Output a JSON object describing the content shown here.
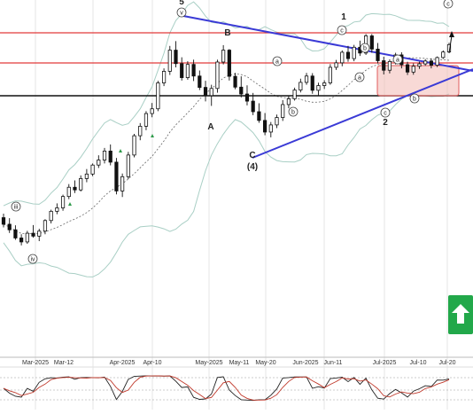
{
  "chart_data": {
    "type": "candlestick",
    "title": "",
    "xlabel": "",
    "ylabel": "",
    "x_tick_labels": [
      "Mar-2025",
      "Mar-12",
      "Apr-2025",
      "Apr-10",
      "May-2025",
      "May-11",
      "May-20",
      "Jun-2025",
      "Jun-11",
      "Jul-2025",
      "Jul-10",
      "Jul-20"
    ],
    "grid": "vertical",
    "price_range_normalized": [
      0,
      100
    ],
    "ohlc": [
      [
        25.0,
        26.5,
        21.3,
        22.5
      ],
      [
        22.5,
        24.8,
        19.2,
        20.4
      ],
      [
        20.4,
        22.1,
        16.6,
        17.3
      ],
      [
        17.3,
        18.7,
        14.5,
        15.8
      ],
      [
        15.8,
        20.0,
        15.1,
        19.1
      ],
      [
        19.1,
        22.2,
        17.4,
        18.0
      ],
      [
        18.0,
        20.8,
        16.1,
        19.9
      ],
      [
        19.9,
        24.4,
        18.7,
        23.9
      ],
      [
        23.9,
        28.0,
        22.8,
        27.4
      ],
      [
        27.4,
        30.4,
        26.3,
        28.7
      ],
      [
        28.7,
        33.7,
        27.6,
        33.0
      ],
      [
        33.0,
        37.7,
        32.0,
        36.5
      ],
      [
        36.5,
        39.1,
        34.3,
        35.5
      ],
      [
        35.5,
        41.0,
        34.9,
        39.8
      ],
      [
        39.8,
        43.4,
        38.4,
        41.5
      ],
      [
        41.5,
        45.5,
        40.7,
        44.9
      ],
      [
        44.9,
        48.6,
        43.8,
        46.8
      ],
      [
        46.8,
        51.4,
        45.5,
        50.2
      ],
      [
        50.2,
        52.7,
        44.8,
        46.0
      ],
      [
        46.0,
        47.6,
        33.8,
        35.1
      ],
      [
        35.1,
        41.7,
        32.8,
        40.5
      ],
      [
        40.5,
        49.9,
        39.6,
        48.7
      ],
      [
        48.7,
        56.7,
        47.8,
        56.0
      ],
      [
        56.0,
        60.8,
        54.3,
        59.6
      ],
      [
        59.6,
        65.3,
        58.1,
        64.4
      ],
      [
        64.4,
        68.4,
        63.0,
        66.2
      ],
      [
        66.2,
        76.8,
        65.3,
        76.0
      ],
      [
        76.0,
        81.5,
        74.8,
        80.4
      ],
      [
        80.4,
        90.0,
        79.0,
        88.4
      ],
      [
        88.4,
        91.8,
        81.9,
        83.3
      ],
      [
        83.3,
        85.7,
        76.9,
        78.0
      ],
      [
        78.0,
        84.2,
        77.2,
        83.0
      ],
      [
        83.0,
        84.8,
        76.7,
        78.6
      ],
      [
        78.6,
        80.7,
        73.3,
        74.3
      ],
      [
        74.3,
        76.8,
        69.0,
        71.2
      ],
      [
        71.2,
        75.3,
        67.3,
        73.9
      ],
      [
        73.9,
        84.8,
        72.3,
        83.9
      ],
      [
        83.9,
        90.3,
        83.0,
        88.4
      ],
      [
        88.4,
        88.8,
        76.9,
        78.5
      ],
      [
        78.5,
        79.8,
        73.6,
        74.4
      ],
      [
        74.4,
        78.5,
        70.5,
        71.8
      ],
      [
        71.8,
        75.1,
        67.5,
        69.1
      ],
      [
        69.1,
        72.2,
        63.8,
        65.1
      ],
      [
        65.1,
        68.3,
        60.9,
        61.8
      ],
      [
        61.8,
        64.6,
        56.2,
        57.4
      ],
      [
        57.4,
        61.2,
        55.4,
        60.1
      ],
      [
        60.1,
        64.0,
        58.9,
        62.9
      ],
      [
        62.9,
        69.5,
        61.6,
        67.8
      ],
      [
        67.8,
        71.3,
        66.4,
        70.0
      ],
      [
        70.0,
        74.2,
        69.3,
        73.3
      ],
      [
        73.3,
        77.6,
        72.4,
        76.2
      ],
      [
        76.2,
        79.8,
        75.3,
        78.6
      ],
      [
        78.6,
        79.7,
        71.9,
        73.2
      ],
      [
        73.2,
        76.1,
        71.1,
        75.0
      ],
      [
        75.0,
        77.0,
        73.7,
        76.0
      ],
      [
        76.0,
        83.1,
        75.3,
        81.9
      ],
      [
        81.9,
        84.7,
        80.9,
        83.6
      ],
      [
        83.6,
        88.3,
        82.3,
        87.6
      ],
      [
        87.6,
        90.0,
        84.0,
        85.2
      ],
      [
        85.2,
        90.4,
        84.2,
        89.5
      ],
      [
        89.5,
        92.0,
        86.2,
        87.3
      ],
      [
        87.3,
        94.5,
        86.6,
        93.8
      ],
      [
        93.8,
        94.5,
        87.4,
        88.8
      ],
      [
        88.8,
        91.1,
        83.4,
        84.4
      ],
      [
        84.4,
        85.9,
        79.2,
        80.8
      ],
      [
        80.8,
        84.9,
        79.6,
        84.1
      ],
      [
        84.1,
        87.4,
        83.0,
        86.6
      ],
      [
        86.6,
        87.6,
        81.5,
        82.9
      ],
      [
        82.9,
        84.0,
        79.0,
        80.1
      ],
      [
        80.1,
        83.4,
        79.1,
        82.3
      ],
      [
        82.3,
        84.0,
        81.3,
        83.2
      ],
      [
        83.2,
        85.0,
        82.5,
        84.3
      ],
      [
        84.3,
        85.3,
        81.5,
        82.7
      ],
      [
        82.7,
        86.0,
        82.0,
        85.6
      ],
      [
        85.6,
        88.3,
        85.1,
        87.7
      ],
      [
        87.7,
        91.2,
        87.4,
        90.5
      ]
    ]
  },
  "annotations": {
    "wave_labels": [
      "5",
      "B",
      "A",
      "C",
      "(4)",
      "1",
      "2"
    ],
    "circle_labels": [
      "v",
      "iii",
      "iv",
      "a",
      "b",
      "c",
      "a",
      "b",
      "c",
      "a",
      "b",
      "c"
    ]
  },
  "buy_button": {
    "icon": "arrow-up-icon",
    "color": "#22a84a"
  }
}
